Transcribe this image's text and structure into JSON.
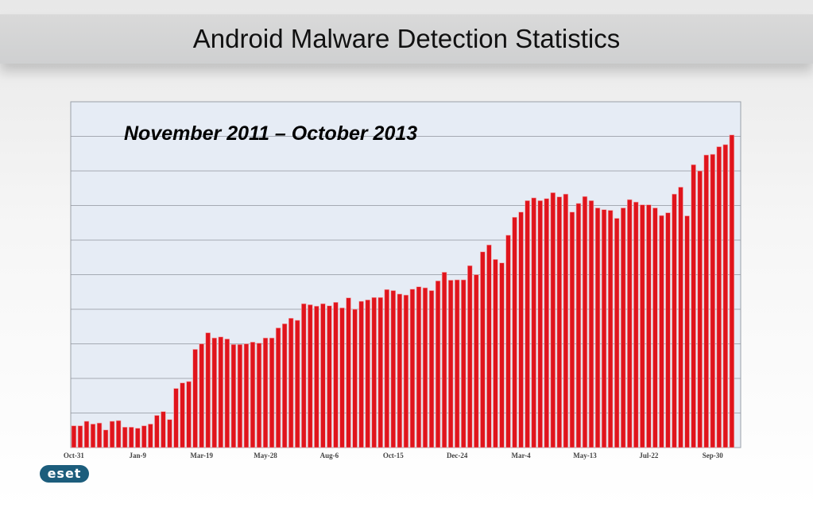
{
  "title": "Android Malware Detection Statistics",
  "chart_data": {
    "type": "bar",
    "subtitle": "November 2011 – October 2013",
    "xlabel": "",
    "ylabel": "",
    "ylim": [
      0,
      100
    ],
    "grid": true,
    "bar_color": "#e0141c",
    "tick_labels": [
      "Oct-31",
      "Jan-9",
      "Mar-19",
      "May-28",
      "Aug-6",
      "Oct-15",
      "Dec-24",
      "Mar-4",
      "May-13",
      "Jul-22",
      "Sep-30"
    ],
    "tick_indices": [
      0,
      10,
      20,
      30,
      40,
      50,
      60,
      70,
      80,
      90,
      100
    ],
    "values": [
      6.3,
      6.3,
      7.6,
      6.8,
      7.1,
      5.1,
      7.6,
      7.8,
      5.9,
      5.9,
      5.6,
      6.3,
      6.8,
      9.3,
      10.4,
      8.1,
      17.1,
      18.7,
      19.1,
      28.4,
      30.0,
      33.2,
      31.7,
      32.0,
      31.4,
      29.8,
      29.8,
      30.0,
      30.5,
      30.2,
      31.7,
      31.7,
      34.6,
      35.8,
      37.4,
      36.8,
      41.6,
      41.3,
      40.9,
      41.6,
      41.0,
      42.0,
      40.4,
      43.3,
      40.0,
      42.3,
      42.7,
      43.4,
      43.4,
      45.7,
      45.4,
      44.4,
      44.1,
      45.8,
      46.5,
      46.2,
      45.4,
      48.2,
      50.7,
      48.4,
      48.5,
      48.5,
      52.6,
      50.0,
      56.6,
      58.6,
      54.4,
      53.4,
      61.4,
      66.6,
      68.1,
      71.4,
      72.2,
      71.4,
      72.0,
      73.7,
      72.5,
      73.3,
      68.1,
      70.6,
      72.6,
      71.4,
      69.3,
      68.8,
      68.6,
      66.3,
      69.3,
      71.7,
      71.0,
      70.2,
      70.2,
      69.3,
      67.1,
      67.9,
      73.3,
      75.3,
      67.0,
      81.8,
      80.0,
      84.6,
      84.8,
      87.0,
      87.6,
      90.4
    ]
  },
  "brand": {
    "logo_text": "eset",
    "logo_color": "#1c5d7c"
  }
}
